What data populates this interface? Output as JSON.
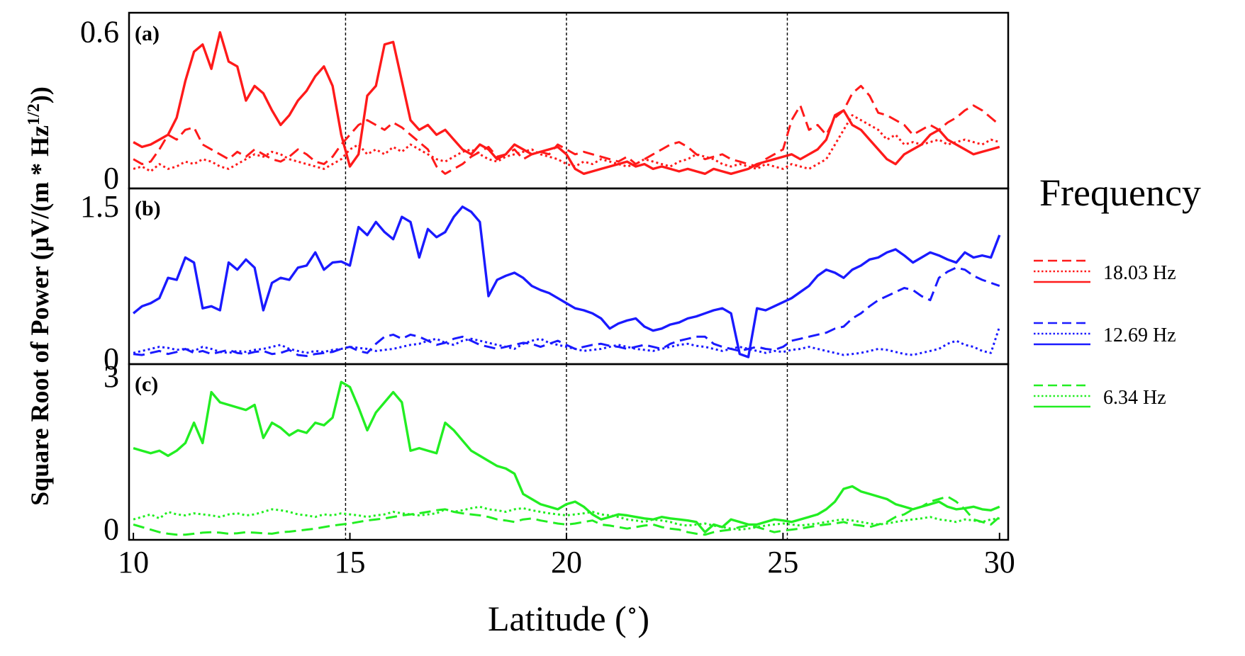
{
  "figure": {
    "ylabel": "Square Root of Power (μV/(m * Hz^1/2))",
    "xlabel": "Latitude (°)",
    "xlim": [
      9.9,
      30.2
    ],
    "xticks": [
      "10",
      "15",
      "20",
      "25",
      "30"
    ],
    "vlines": [
      14.9,
      20.0,
      25.1
    ],
    "legend_title": "Frequency",
    "legend_placement": "right"
  },
  "chart_data": [
    {
      "type": "line",
      "panel_label": "(a)",
      "color": "#ff1a1a",
      "legend_label": "18.03 Hz",
      "ylim": [
        -0.04,
        0.68
      ],
      "yticks": [
        {
          "value": 0,
          "label": "0"
        },
        {
          "value": 0.6,
          "label": "0.6"
        }
      ],
      "x_start": 10,
      "x_step": 0.2,
      "series": [
        {
          "style": "dashed",
          "values": [
            0.08,
            0.06,
            0.07,
            0.12,
            0.18,
            0.16,
            0.2,
            0.21,
            0.14,
            0.12,
            0.1,
            0.08,
            0.11,
            0.09,
            0.12,
            0.1,
            0.08,
            0.07,
            0.09,
            0.12,
            0.1,
            0.07,
            0.06,
            0.09,
            0.14,
            0.18,
            0.22,
            0.24,
            0.22,
            0.2,
            0.23,
            0.21,
            0.18,
            0.15,
            0.12,
            0.05,
            0.02,
            0.04,
            0.06,
            0.09,
            0.11,
            0.13,
            0.09,
            0.1,
            0.12,
            0.08,
            0.1,
            0.11,
            0.1,
            0.14,
            0.12,
            0.1,
            0.11,
            0.1,
            0.09,
            0.08,
            0.07,
            0.09,
            0.06,
            0.08,
            0.1,
            0.12,
            0.14,
            0.15,
            0.13,
            0.1,
            0.08,
            0.09,
            0.1,
            0.08,
            0.07,
            0.06,
            0.05,
            0.08,
            0.1,
            0.12,
            0.24,
            0.3,
            0.2,
            0.22,
            0.18,
            0.25,
            0.28,
            0.35,
            0.38,
            0.34,
            0.27,
            0.26,
            0.24,
            0.22,
            0.18,
            0.2,
            0.22,
            0.2,
            0.23,
            0.25,
            0.28,
            0.3,
            0.28,
            0.25,
            0.22
          ]
        },
        {
          "style": "dotted",
          "values": [
            0.04,
            0.05,
            0.03,
            0.06,
            0.04,
            0.05,
            0.07,
            0.06,
            0.08,
            0.07,
            0.05,
            0.04,
            0.06,
            0.08,
            0.1,
            0.09,
            0.11,
            0.1,
            0.08,
            0.07,
            0.06,
            0.05,
            0.04,
            0.06,
            0.08,
            0.12,
            0.14,
            0.1,
            0.12,
            0.1,
            0.13,
            0.11,
            0.14,
            0.12,
            0.1,
            0.08,
            0.07,
            0.09,
            0.11,
            0.12,
            0.1,
            0.08,
            0.07,
            0.09,
            0.1,
            0.11,
            0.12,
            0.1,
            0.09,
            0.08,
            0.06,
            0.05,
            0.07,
            0.06,
            0.08,
            0.07,
            0.06,
            0.05,
            0.06,
            0.08,
            0.07,
            0.06,
            0.05,
            0.07,
            0.08,
            0.1,
            0.09,
            0.08,
            0.06,
            0.05,
            0.06,
            0.05,
            0.04,
            0.06,
            0.05,
            0.04,
            0.06,
            0.05,
            0.04,
            0.06,
            0.08,
            0.14,
            0.2,
            0.26,
            0.24,
            0.22,
            0.2,
            0.16,
            0.18,
            0.14,
            0.15,
            0.14,
            0.15,
            0.16,
            0.14,
            0.15,
            0.16,
            0.15,
            0.14,
            0.16,
            0.15
          ]
        },
        {
          "style": "solid",
          "values": [
            0.15,
            0.13,
            0.14,
            0.16,
            0.18,
            0.25,
            0.4,
            0.52,
            0.55,
            0.45,
            0.6,
            0.48,
            0.46,
            0.32,
            0.38,
            0.35,
            0.28,
            0.22,
            0.26,
            0.32,
            0.36,
            0.42,
            0.46,
            0.38,
            0.18,
            0.05,
            0.1,
            0.34,
            0.38,
            0.55,
            0.56,
            0.4,
            0.24,
            0.2,
            0.22,
            0.18,
            0.2,
            0.16,
            0.12,
            0.1,
            0.14,
            0.12,
            0.08,
            0.1,
            0.14,
            0.12,
            0.1,
            0.11,
            0.12,
            0.13,
            0.1,
            0.04,
            0.02,
            0.03,
            0.04,
            0.05,
            0.06,
            0.07,
            0.05,
            0.06,
            0.04,
            0.05,
            0.04,
            0.03,
            0.04,
            0.03,
            0.02,
            0.04,
            0.03,
            0.02,
            0.03,
            0.04,
            0.06,
            0.07,
            0.08,
            0.09,
            0.1,
            0.08,
            0.1,
            0.12,
            0.16,
            0.26,
            0.28,
            0.22,
            0.2,
            0.16,
            0.12,
            0.08,
            0.06,
            0.1,
            0.12,
            0.14,
            0.18,
            0.2,
            0.16,
            0.14,
            0.12,
            0.1,
            0.11,
            0.12,
            0.13
          ]
        }
      ]
    },
    {
      "type": "line",
      "panel_label": "(b)",
      "color": "#1a1aff",
      "legend_label": "12.69 Hz",
      "ylim": [
        -0.05,
        1.68
      ],
      "yticks": [
        {
          "value": 0,
          "label": "0"
        },
        {
          "value": 1.5,
          "label": "1.5"
        }
      ],
      "x_start": 10,
      "x_step": 0.2,
      "series": [
        {
          "style": "dashed",
          "values": [
            0.05,
            0.04,
            0.06,
            0.08,
            0.05,
            0.07,
            0.1,
            0.06,
            0.08,
            0.05,
            0.07,
            0.09,
            0.06,
            0.05,
            0.07,
            0.08,
            0.05,
            0.06,
            0.09,
            0.04,
            0.03,
            0.05,
            0.06,
            0.07,
            0.1,
            0.12,
            0.08,
            0.06,
            0.15,
            0.22,
            0.24,
            0.2,
            0.24,
            0.22,
            0.18,
            0.14,
            0.16,
            0.2,
            0.22,
            0.18,
            0.14,
            0.12,
            0.1,
            0.12,
            0.14,
            0.16,
            0.15,
            0.12,
            0.15,
            0.18,
            0.14,
            0.1,
            0.12,
            0.14,
            0.15,
            0.13,
            0.12,
            0.1,
            0.12,
            0.14,
            0.12,
            0.1,
            0.15,
            0.18,
            0.2,
            0.22,
            0.22,
            0.15,
            0.12,
            0.1,
            0.08,
            0.1,
            0.12,
            0.1,
            0.09,
            0.12,
            0.18,
            0.2,
            0.22,
            0.24,
            0.26,
            0.3,
            0.32,
            0.4,
            0.45,
            0.52,
            0.58,
            0.62,
            0.66,
            0.7,
            0.68,
            0.62,
            0.58,
            0.8,
            0.86,
            0.9,
            0.88,
            0.82,
            0.78,
            0.75,
            0.72
          ]
        },
        {
          "style": "dotted",
          "values": [
            0.06,
            0.08,
            0.1,
            0.12,
            0.11,
            0.09,
            0.1,
            0.08,
            0.12,
            0.1,
            0.07,
            0.06,
            0.08,
            0.07,
            0.09,
            0.1,
            0.12,
            0.14,
            0.1,
            0.08,
            0.06,
            0.08,
            0.07,
            0.09,
            0.1,
            0.12,
            0.11,
            0.1,
            0.08,
            0.09,
            0.1,
            0.12,
            0.14,
            0.15,
            0.18,
            0.2,
            0.16,
            0.14,
            0.18,
            0.2,
            0.18,
            0.16,
            0.14,
            0.12,
            0.1,
            0.15,
            0.18,
            0.2,
            0.16,
            0.14,
            0.12,
            0.1,
            0.08,
            0.09,
            0.1,
            0.12,
            0.14,
            0.12,
            0.1,
            0.09,
            0.08,
            0.1,
            0.12,
            0.14,
            0.15,
            0.13,
            0.12,
            0.1,
            0.08,
            0.1,
            0.12,
            0.1,
            0.08,
            0.06,
            0.08,
            0.07,
            0.09,
            0.1,
            0.12,
            0.1,
            0.08,
            0.06,
            0.04,
            0.05,
            0.06,
            0.08,
            0.1,
            0.09,
            0.07,
            0.05,
            0.04,
            0.06,
            0.08,
            0.1,
            0.15,
            0.18,
            0.14,
            0.12,
            0.08,
            0.06,
            0.32
          ]
        },
        {
          "style": "solid",
          "values": [
            0.45,
            0.52,
            0.55,
            0.6,
            0.8,
            0.78,
            1.0,
            0.95,
            0.5,
            0.52,
            0.48,
            0.95,
            0.88,
            0.98,
            0.9,
            0.48,
            0.75,
            0.8,
            0.78,
            0.9,
            0.92,
            1.05,
            0.88,
            0.95,
            0.96,
            0.92,
            1.3,
            1.22,
            1.35,
            1.25,
            1.18,
            1.4,
            1.35,
            1.0,
            1.28,
            1.2,
            1.25,
            1.4,
            1.5,
            1.45,
            1.35,
            0.62,
            0.78,
            0.82,
            0.85,
            0.8,
            0.72,
            0.68,
            0.65,
            0.6,
            0.55,
            0.5,
            0.48,
            0.45,
            0.4,
            0.3,
            0.35,
            0.38,
            0.4,
            0.32,
            0.28,
            0.3,
            0.34,
            0.36,
            0.4,
            0.42,
            0.45,
            0.48,
            0.5,
            0.45,
            0.05,
            0.02,
            0.5,
            0.48,
            0.52,
            0.56,
            0.6,
            0.66,
            0.72,
            0.82,
            0.88,
            0.85,
            0.8,
            0.88,
            0.92,
            0.98,
            1.0,
            1.05,
            1.08,
            1.02,
            0.95,
            1.0,
            1.05,
            1.02,
            0.98,
            0.95,
            1.05,
            1.0,
            1.02,
            1.0,
            1.22
          ]
        }
      ]
    },
    {
      "type": "line",
      "panel_label": "(c)",
      "color": "#22ee22",
      "legend_label": "6.34 Hz",
      "ylim": [
        -0.2,
        3.25
      ],
      "yticks": [
        {
          "value": 0,
          "label": "0"
        },
        {
          "value": 3,
          "label": "3"
        }
      ],
      "x_start": 10,
      "x_step": 0.2,
      "series": [
        {
          "style": "dashed",
          "values": [
            0.1,
            0.05,
            0.0,
            -0.05,
            -0.08,
            -0.1,
            -0.1,
            -0.08,
            -0.06,
            -0.05,
            -0.06,
            -0.08,
            -0.07,
            -0.05,
            -0.06,
            -0.07,
            -0.08,
            -0.05,
            -0.04,
            -0.02,
            0.0,
            0.02,
            0.05,
            0.08,
            0.1,
            0.12,
            0.15,
            0.18,
            0.2,
            0.22,
            0.25,
            0.28,
            0.3,
            0.32,
            0.35,
            0.38,
            0.4,
            0.35,
            0.32,
            0.3,
            0.28,
            0.25,
            0.2,
            0.18,
            0.15,
            0.2,
            0.22,
            0.18,
            0.15,
            0.12,
            0.1,
            0.12,
            0.15,
            0.18,
            0.1,
            0.08,
            0.05,
            0.02,
            0.05,
            0.08,
            0.1,
            0.05,
            0.02,
            0.0,
            -0.05,
            -0.08,
            -0.1,
            -0.05,
            -0.02,
            0.0,
            0.05,
            0.08,
            0.05,
            0.0,
            -0.05,
            -0.02,
            0.0,
            0.02,
            0.05,
            0.08,
            0.1,
            0.12,
            0.15,
            0.1,
            0.08,
            0.05,
            0.1,
            0.15,
            0.25,
            0.3,
            0.4,
            0.45,
            0.55,
            0.6,
            0.65,
            0.55,
            0.4,
            0.2,
            0.15,
            0.1,
            0.25
          ]
        },
        {
          "style": "dotted",
          "values": [
            0.2,
            0.25,
            0.3,
            0.22,
            0.35,
            0.3,
            0.28,
            0.32,
            0.3,
            0.28,
            0.25,
            0.3,
            0.32,
            0.28,
            0.3,
            0.35,
            0.4,
            0.38,
            0.35,
            0.3,
            0.28,
            0.25,
            0.3,
            0.28,
            0.32,
            0.3,
            0.28,
            0.25,
            0.28,
            0.3,
            0.35,
            0.32,
            0.3,
            0.28,
            0.3,
            0.32,
            0.4,
            0.35,
            0.38,
            0.42,
            0.45,
            0.4,
            0.38,
            0.35,
            0.4,
            0.42,
            0.38,
            0.35,
            0.32,
            0.3,
            0.28,
            0.3,
            0.32,
            0.35,
            0.3,
            0.28,
            0.25,
            0.2,
            0.18,
            0.15,
            0.2,
            0.18,
            0.15,
            0.1,
            0.08,
            0.1,
            0.12,
            0.08,
            0.05,
            0.02,
            0.0,
            0.02,
            0.05,
            0.08,
            0.1,
            0.12,
            0.1,
            0.08,
            0.1,
            0.12,
            0.15,
            0.18,
            0.2,
            0.18,
            0.15,
            0.12,
            0.1,
            0.12,
            0.15,
            0.18,
            0.2,
            0.22,
            0.25,
            0.2,
            0.18,
            0.15,
            0.2,
            0.18,
            0.15,
            0.2,
            0.22
          ]
        },
        {
          "style": "solid",
          "values": [
            1.6,
            1.55,
            1.5,
            1.55,
            1.45,
            1.55,
            1.7,
            2.1,
            1.7,
            2.7,
            2.5,
            2.45,
            2.4,
            2.35,
            2.45,
            1.8,
            2.1,
            2.0,
            1.85,
            1.95,
            1.9,
            2.1,
            2.05,
            2.2,
            2.9,
            2.8,
            2.4,
            1.95,
            2.3,
            2.5,
            2.7,
            2.5,
            1.55,
            1.6,
            1.55,
            1.5,
            2.1,
            1.95,
            1.75,
            1.55,
            1.45,
            1.35,
            1.25,
            1.2,
            1.1,
            0.7,
            0.6,
            0.5,
            0.45,
            0.4,
            0.5,
            0.55,
            0.45,
            0.3,
            0.2,
            0.25,
            0.3,
            0.28,
            0.25,
            0.22,
            0.2,
            0.25,
            0.22,
            0.2,
            0.18,
            0.15,
            -0.05,
            0.1,
            0.05,
            0.2,
            0.15,
            0.1,
            0.1,
            0.15,
            0.2,
            0.18,
            0.15,
            0.2,
            0.25,
            0.3,
            0.4,
            0.55,
            0.8,
            0.85,
            0.75,
            0.7,
            0.65,
            0.6,
            0.5,
            0.45,
            0.4,
            0.45,
            0.5,
            0.55,
            0.45,
            0.4,
            0.42,
            0.45,
            0.4,
            0.38,
            0.45
          ]
        }
      ]
    }
  ]
}
